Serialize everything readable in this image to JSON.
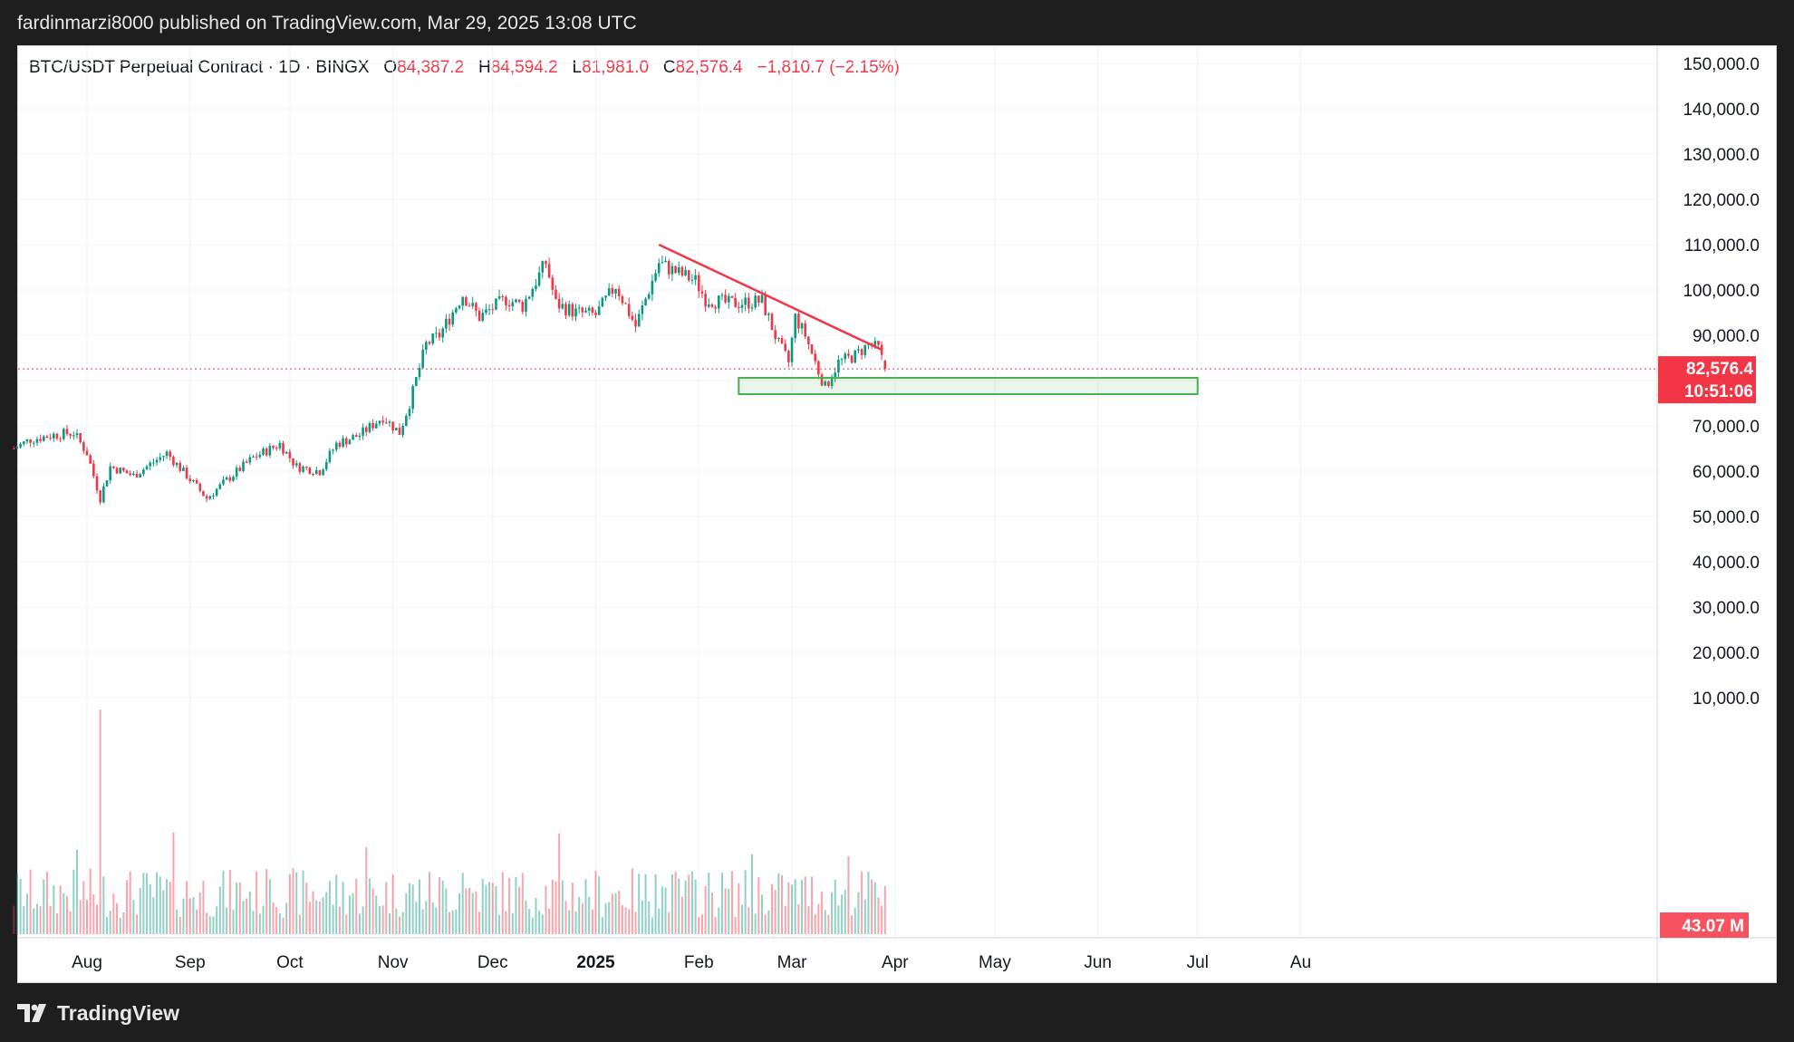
{
  "header": {
    "published_by": "fardinmarzi8000 published on TradingView.com, Mar 29, 2025 13:08 UTC"
  },
  "footer": {
    "brand": "TradingView"
  },
  "legend": {
    "symbol": "BTC/USDT Perpetual Contract · 1D · BINGX",
    "o_label": "O",
    "o_value": "84,387.2",
    "h_label": "H",
    "h_value": "84,594.2",
    "l_label": "L",
    "l_value": "81,981.0",
    "c_label": "C",
    "c_value": "82,576.4",
    "change": "−1,810.7 (−2.15%)"
  },
  "price_badge": {
    "price": "82,576.4",
    "countdown": "10:51:06",
    "color": "#f23645"
  },
  "volume_badge": {
    "value": "43.07 M",
    "color": "#f7525f"
  },
  "colors": {
    "up": "#089981",
    "down": "#f23645",
    "trendline": "#f23645",
    "support_zone_border": "#4caf50",
    "grid": "#f0f3fa"
  },
  "chart_data": {
    "type": "candlestick",
    "symbol": "BTC/USDT Perpetual Contract",
    "interval": "1D",
    "exchange": "BINGX",
    "y_axis_ticks": [
      "150,000.0",
      "140,000.0",
      "130,000.0",
      "120,000.0",
      "110,000.0",
      "100,000.0",
      "90,000.0",
      "70,000.0",
      "60,000.0",
      "50,000.0",
      "40,000.0",
      "30,000.0",
      "20,000.0",
      "10,000.0"
    ],
    "y_axis_values": [
      150000,
      140000,
      130000,
      120000,
      110000,
      100000,
      90000,
      70000,
      60000,
      50000,
      40000,
      30000,
      20000,
      10000
    ],
    "ylim": [
      0,
      155000
    ],
    "x_axis_labels": [
      {
        "label": "Aug",
        "date": "2024-08-01"
      },
      {
        "label": "Sep",
        "date": "2024-09-01"
      },
      {
        "label": "Oct",
        "date": "2024-10-01"
      },
      {
        "label": "Nov",
        "date": "2024-11-01"
      },
      {
        "label": "Dec",
        "date": "2024-12-01"
      },
      {
        "label": "2025",
        "date": "2025-01-01"
      },
      {
        "label": "Feb",
        "date": "2025-02-01"
      },
      {
        "label": "Mar",
        "date": "2025-03-01"
      },
      {
        "label": "Apr",
        "date": "2025-04-01"
      },
      {
        "label": "May",
        "date": "2025-05-01"
      },
      {
        "label": "Jun",
        "date": "2025-06-01"
      },
      {
        "label": "Jul",
        "date": "2025-07-01"
      },
      {
        "label": "Au",
        "date": "2025-08-01"
      }
    ],
    "price_path": [
      [
        "2024-07-10",
        65000
      ],
      [
        "2024-07-15",
        67000
      ],
      [
        "2024-07-22",
        68000
      ],
      [
        "2024-07-28",
        68500
      ],
      [
        "2024-08-01",
        64000
      ],
      [
        "2024-08-05",
        54000
      ],
      [
        "2024-08-08",
        61000
      ],
      [
        "2024-08-15",
        59000
      ],
      [
        "2024-08-25",
        64000
      ],
      [
        "2024-08-31",
        59000
      ],
      [
        "2024-09-06",
        54000
      ],
      [
        "2024-09-12",
        58000
      ],
      [
        "2024-09-20",
        63000
      ],
      [
        "2024-09-28",
        66000
      ],
      [
        "2024-10-03",
        61000
      ],
      [
        "2024-10-10",
        60000
      ],
      [
        "2024-10-15",
        66000
      ],
      [
        "2024-10-22",
        68000
      ],
      [
        "2024-10-29",
        72000
      ],
      [
        "2024-11-03",
        68500
      ],
      [
        "2024-11-06",
        75000
      ],
      [
        "2024-11-11",
        88000
      ],
      [
        "2024-11-15",
        90000
      ],
      [
        "2024-11-22",
        99000
      ],
      [
        "2024-11-27",
        94000
      ],
      [
        "2024-12-05",
        98000
      ],
      [
        "2024-12-10",
        96500
      ],
      [
        "2024-12-17",
        106000
      ],
      [
        "2024-12-20",
        97000
      ],
      [
        "2024-12-26",
        95000
      ],
      [
        "2025-01-01",
        94500
      ],
      [
        "2025-01-07",
        101000
      ],
      [
        "2025-01-13",
        92000
      ],
      [
        "2025-01-20",
        106000
      ],
      [
        "2025-01-25",
        104000
      ],
      [
        "2025-01-31",
        102000
      ],
      [
        "2025-02-03",
        98000
      ],
      [
        "2025-02-10",
        97000
      ],
      [
        "2025-02-20",
        97500
      ],
      [
        "2025-02-25",
        88000
      ],
      [
        "2025-02-28",
        84000
      ],
      [
        "2025-03-02",
        94000
      ],
      [
        "2025-03-05",
        90000
      ],
      [
        "2025-03-09",
        82000
      ],
      [
        "2025-03-11",
        78500
      ],
      [
        "2025-03-15",
        84000
      ],
      [
        "2025-03-20",
        85500
      ],
      [
        "2025-03-24",
        88000
      ],
      [
        "2025-03-27",
        87000
      ],
      [
        "2025-03-29",
        82576.4
      ]
    ],
    "last_bar": {
      "open": 84387.2,
      "high": 84594.2,
      "low": 81981.0,
      "close": 82576.4,
      "change": -1810.7,
      "change_pct": -2.15
    },
    "annotations": [
      {
        "type": "descending_trendline",
        "from": [
          "2025-01-20",
          110000
        ],
        "to": [
          "2025-03-28",
          86800
        ]
      },
      {
        "type": "support_zone",
        "from_date": "2025-02-13",
        "to_date": "2025-07-01",
        "low": 77000,
        "high": 80600
      },
      {
        "type": "current_price_line",
        "value": 82576.4
      }
    ],
    "volume": {
      "last_value": "43.07 M",
      "peak_date": "2024-08-05"
    },
    "grid": true,
    "legend_position": "top-left"
  }
}
